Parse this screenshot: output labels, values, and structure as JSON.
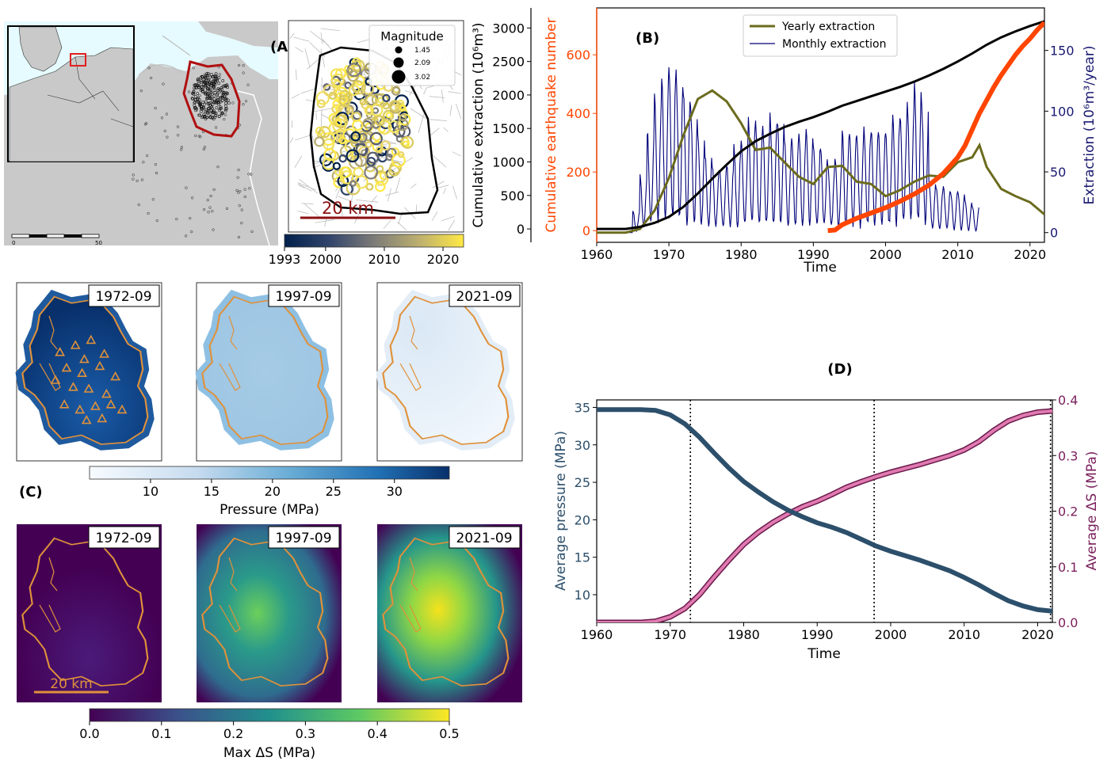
{
  "panel_labels": {
    "a": "(A)",
    "b": "(B)",
    "c": "(C)",
    "d": "(D)"
  },
  "map": {
    "scale_ticks": [
      "0",
      "50"
    ],
    "magnitude_legend": {
      "title": "Magnitude",
      "entries": [
        "1.45",
        "2.09",
        "3.02"
      ]
    },
    "scale_bar_label": "20 km",
    "colorbar_ticks": [
      "1993",
      "2000",
      "2010",
      "2020"
    ],
    "colors": {
      "field_outline": "#b01010",
      "scale_bar": "#8b1010",
      "colorbar_start": "#00204c",
      "colorbar_mid": "#7c7b78",
      "colorbar_end": "#ffe945"
    }
  },
  "chart_data": [
    {
      "id": "B",
      "type": "line",
      "xlabel": "Time",
      "ylabel_left": "Cumulative extraction (10⁶m³)",
      "ylabel_mid": "Cumulative earthquake number",
      "ylabel_right": "Extraction (10⁶m³/year)",
      "xlim": [
        1960,
        2022
      ],
      "xticks": [
        "1960",
        "1970",
        "1980",
        "1990",
        "2000",
        "2010",
        "2020"
      ],
      "ylim_left": [
        -200,
        3300
      ],
      "yticks_left": [
        "0",
        "500",
        "1000",
        "1500",
        "2000",
        "2500",
        "3000"
      ],
      "ylim_mid": [
        -40,
        760
      ],
      "yticks_mid": [
        "0",
        "200",
        "400",
        "600"
      ],
      "ylim_right": [
        -8,
        185
      ],
      "yticks_right": [
        "0",
        "50",
        "100",
        "150"
      ],
      "legend": [
        "Yearly extraction",
        "Monthly extraction"
      ],
      "colors": {
        "cumulative_extraction": "#000000",
        "earthquakes": "#ff4500",
        "yearly": "#6b6b1e",
        "monthly": "#00007a",
        "mid_axis": "#ff4500",
        "right_axis": "#191970"
      },
      "cumulative_extraction": {
        "x": [
          1960,
          1964,
          1966,
          1968,
          1970,
          1972,
          1974,
          1976,
          1978,
          1980,
          1982,
          1984,
          1986,
          1988,
          1990,
          1992,
          1994,
          1996,
          1998,
          2000,
          2002,
          2004,
          2006,
          2008,
          2010,
          2012,
          2014,
          2016,
          2018,
          2020,
          2022
        ],
        "y": [
          0,
          0,
          30,
          90,
          180,
          330,
          530,
          750,
          960,
          1160,
          1310,
          1420,
          1520,
          1600,
          1670,
          1750,
          1840,
          1910,
          1980,
          2050,
          2120,
          2200,
          2290,
          2390,
          2500,
          2620,
          2750,
          2860,
          2950,
          3030,
          3100
        ]
      },
      "cumulative_earthquakes": {
        "x": [
          1992,
          1993,
          1994,
          1996,
          1998,
          2000,
          2002,
          2004,
          2006,
          2008,
          2010,
          2011,
          2012,
          2013,
          2014,
          2015,
          2016,
          2017,
          2018,
          2019,
          2020,
          2021,
          2022
        ],
        "y": [
          0,
          2,
          20,
          42,
          60,
          78,
          100,
          125,
          155,
          195,
          250,
          290,
          345,
          400,
          445,
          490,
          530,
          565,
          600,
          630,
          655,
          685,
          710
        ]
      },
      "yearly_extraction": {
        "x": [
          1960,
          1964,
          1966,
          1968,
          1970,
          1972,
          1974,
          1976,
          1978,
          1980,
          1982,
          1984,
          1986,
          1988,
          1990,
          1992,
          1994,
          1996,
          1998,
          2000,
          2002,
          2004,
          2006,
          2008,
          2010,
          2012,
          2013,
          2014,
          2016,
          2018,
          2020,
          2022
        ],
        "y": [
          0,
          0,
          3,
          18,
          45,
          80,
          110,
          117,
          108,
          90,
          68,
          70,
          58,
          46,
          40,
          54,
          55,
          42,
          40,
          30,
          35,
          42,
          47,
          46,
          58,
          62,
          72,
          54,
          36,
          30,
          25,
          15
        ]
      },
      "monthly_extraction": {
        "x_start": 1960,
        "amp": [
          0,
          0,
          0,
          0,
          0,
          10,
          25,
          45,
          60,
          70,
          75,
          70,
          62,
          55,
          42,
          34,
          30,
          28,
          30,
          38,
          40,
          50,
          48,
          46,
          52,
          50,
          40,
          42,
          44,
          45,
          38,
          36,
          30,
          34,
          44,
          44,
          42,
          46,
          45,
          45,
          46,
          52,
          52,
          58,
          65,
          55,
          22,
          20,
          20,
          18,
          18,
          14,
          12
        ]
      }
    },
    {
      "id": "D",
      "type": "line",
      "xlabel": "Time",
      "ylabel_left": "Average pressure (MPa)",
      "ylabel_right": "Average ΔS (MPa)",
      "xlim": [
        1960,
        2022
      ],
      "xticks": [
        "1960",
        "1970",
        "1980",
        "1990",
        "2000",
        "2010",
        "2020"
      ],
      "ylim_left": [
        6.3,
        36
      ],
      "yticks_left": [
        "10",
        "15",
        "20",
        "25",
        "30",
        "35"
      ],
      "ylim_right": [
        0,
        0.4
      ],
      "yticks_right": [
        "0.0",
        "0.1",
        "0.2",
        "0.3",
        "0.4"
      ],
      "vlines": [
        1972.75,
        1997.75,
        2021.75
      ],
      "colors": {
        "pressure": "#2c4f6b",
        "delta_s": "#e07ab0",
        "delta_s_edge": "#6a1a4c",
        "right_axis": "#7a1f5c"
      },
      "pressure": {
        "x": [
          1960,
          1962,
          1964,
          1966,
          1968,
          1970,
          1972,
          1974,
          1976,
          1978,
          1980,
          1982,
          1984,
          1986,
          1988,
          1990,
          1992,
          1994,
          1996,
          1998,
          2000,
          2002,
          2004,
          2006,
          2008,
          2010,
          2012,
          2014,
          2016,
          2018,
          2020,
          2022
        ],
        "y": [
          34.7,
          34.7,
          34.7,
          34.7,
          34.6,
          34.0,
          32.8,
          31.0,
          28.9,
          26.9,
          25.1,
          23.7,
          22.4,
          21.3,
          20.4,
          19.6,
          19.0,
          18.3,
          17.4,
          16.5,
          15.8,
          15.2,
          14.6,
          13.9,
          13.2,
          12.3,
          11.3,
          10.2,
          9.2,
          8.5,
          8.0,
          7.8
        ]
      },
      "delta_s": {
        "x": [
          1960,
          1962,
          1964,
          1966,
          1968,
          1970,
          1972,
          1974,
          1976,
          1978,
          1980,
          1982,
          1984,
          1986,
          1988,
          1990,
          1992,
          1994,
          1996,
          1998,
          2000,
          2002,
          2004,
          2006,
          2008,
          2010,
          2012,
          2014,
          2016,
          2018,
          2020,
          2022
        ],
        "y": [
          0.0,
          0.0,
          0.0,
          0.0,
          0.002,
          0.01,
          0.025,
          0.05,
          0.082,
          0.112,
          0.14,
          0.162,
          0.18,
          0.195,
          0.208,
          0.218,
          0.23,
          0.243,
          0.253,
          0.262,
          0.27,
          0.277,
          0.284,
          0.292,
          0.3,
          0.31,
          0.325,
          0.345,
          0.362,
          0.372,
          0.378,
          0.38
        ]
      }
    }
  ],
  "snapshots": {
    "dates": [
      "1972-09",
      "1997-09",
      "2021-09"
    ],
    "pressure_levels": [
      34,
      19,
      7
    ],
    "pressure_colorbar": {
      "label": "Pressure (MPa)",
      "ticks": [
        "10",
        "15",
        "20",
        "25",
        "30"
      ],
      "range": [
        5,
        34.5
      ]
    },
    "ds_colorbar": {
      "label": "Max ΔS (MPa)",
      "ticks": [
        "0.0",
        "0.1",
        "0.2",
        "0.3",
        "0.4",
        "0.5"
      ],
      "range": [
        0,
        0.5
      ]
    },
    "scale_bar_label": "20 km",
    "colors": {
      "outline": "#e0913a",
      "well_marker": "#e0913a",
      "viridis_dark": "#440154",
      "viridis_mid": "#21908d",
      "viridis_bright": "#fde725"
    }
  }
}
